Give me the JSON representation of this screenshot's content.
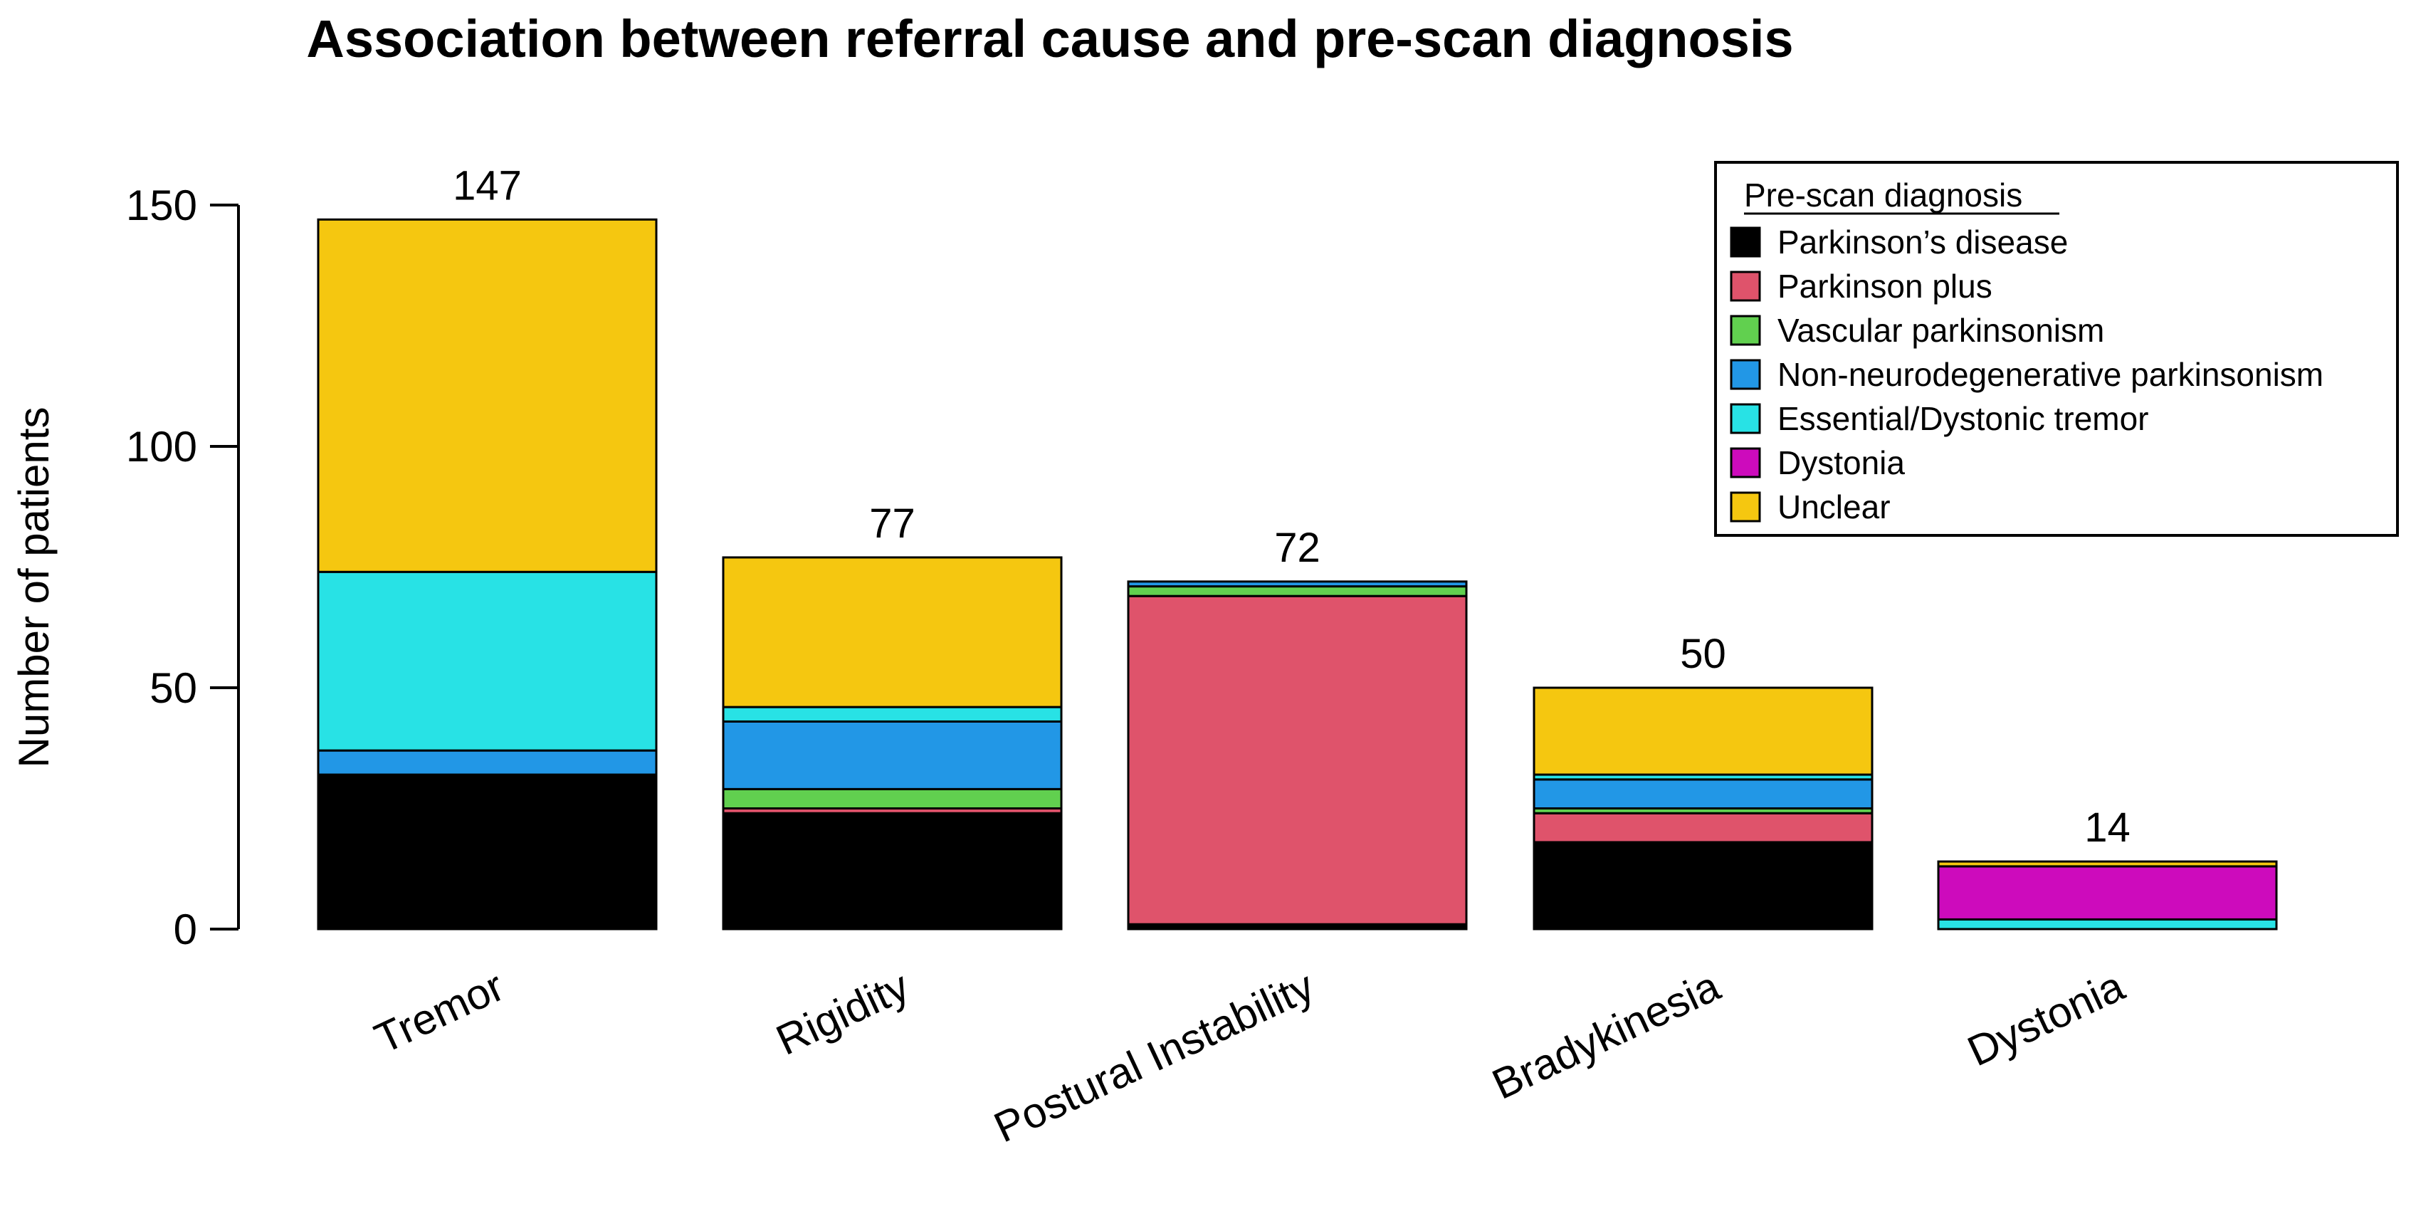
{
  "chart_data": {
    "type": "bar",
    "stacked": true,
    "title": "Association between referral cause and pre-scan diagnosis",
    "xlabel": "",
    "ylabel": "Number of patients",
    "ylim": [
      0,
      150
    ],
    "yticks": [
      0,
      50,
      100,
      150
    ],
    "grid": false,
    "categories": [
      "Tremor",
      "Rigidity",
      "Postural Instability",
      "Bradykinesia",
      "Dystonia"
    ],
    "totals": [
      147,
      77,
      72,
      50,
      14
    ],
    "series": [
      {
        "name": "Parkinson’s disease",
        "color": "#000000",
        "values": [
          32,
          24,
          1,
          18,
          0
        ]
      },
      {
        "name": "Parkinson plus",
        "color": "#DF536B",
        "values": [
          0,
          1,
          68,
          6,
          0
        ]
      },
      {
        "name": "Vascular parkinsonism",
        "color": "#61D04F",
        "values": [
          0,
          4,
          2,
          1,
          0
        ]
      },
      {
        "name": "Non-neurodegenerative parkinsonism",
        "color": "#2297E6",
        "values": [
          5,
          14,
          1,
          6,
          0
        ]
      },
      {
        "name": "Essential/Dystonic tremor",
        "color": "#28E2E5",
        "values": [
          37,
          3,
          0,
          1,
          2
        ]
      },
      {
        "name": "Dystonia",
        "color": "#CD0BBC",
        "values": [
          0,
          0,
          0,
          0,
          11
        ]
      },
      {
        "name": "Unclear",
        "color": "#F5C710",
        "values": [
          73,
          31,
          0,
          18,
          1
        ]
      }
    ],
    "legend": {
      "title": "Pre-scan diagnosis",
      "position": "top-right"
    }
  }
}
